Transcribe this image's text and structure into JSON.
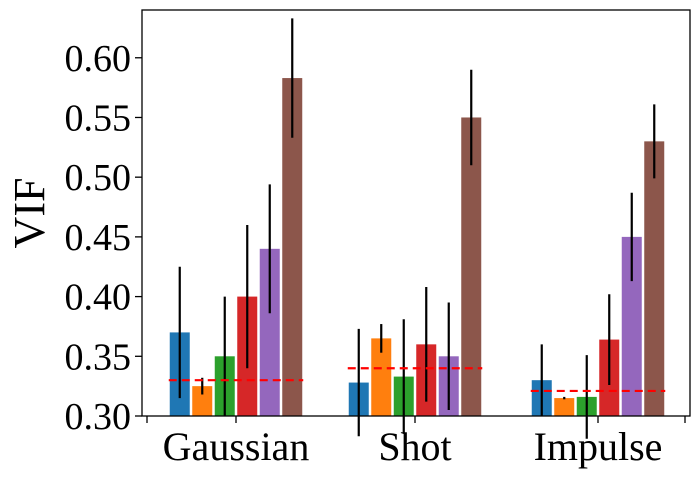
{
  "chart_data": {
    "type": "bar",
    "title": "",
    "xlabel": "",
    "ylabel": "VIF",
    "ylim": [
      0.3,
      0.64
    ],
    "yticks": [
      "0.30",
      "0.35",
      "0.40",
      "0.45",
      "0.50",
      "0.55",
      "0.60"
    ],
    "categories": [
      "Gaussian",
      "Shot",
      "Impulse"
    ],
    "grid": false,
    "legend": "none",
    "colors": [
      "#1f77b4",
      "#ff7f0e",
      "#2ca02c",
      "#d62728",
      "#9467bd",
      "#8c564b"
    ],
    "series": [
      {
        "values": [
          0.37,
          0.328,
          0.33
        ],
        "errors": [
          0.055,
          0.045,
          0.03
        ]
      },
      {
        "values": [
          0.325,
          0.365,
          0.315
        ],
        "errors": [
          0.007,
          0.012,
          0.001
        ]
      },
      {
        "values": [
          0.35,
          0.333,
          0.316
        ],
        "errors": [
          0.05,
          0.048,
          0.035
        ]
      },
      {
        "values": [
          0.4,
          0.36,
          0.364
        ],
        "errors": [
          0.06,
          0.048,
          0.038
        ]
      },
      {
        "values": [
          0.44,
          0.35,
          0.45
        ],
        "errors": [
          0.054,
          0.045,
          0.037
        ]
      },
      {
        "values": [
          0.583,
          0.55,
          0.53
        ],
        "errors": [
          0.05,
          0.04,
          0.031
        ]
      }
    ],
    "reference_lines": {
      "color": "#ff0000",
      "style": "dashed",
      "values": [
        0.33,
        0.34,
        0.321
      ]
    }
  }
}
